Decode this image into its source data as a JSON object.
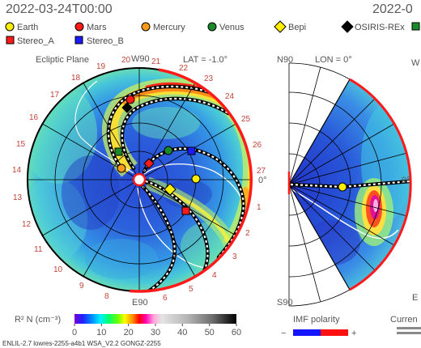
{
  "header": {
    "timestamp": "2022-03-24T00:00",
    "timestamp_right": "2022-0"
  },
  "legend": {
    "items": [
      {
        "label": "Earth",
        "shape": "circle",
        "color": "#ffee00"
      },
      {
        "label": "Mars",
        "shape": "circle",
        "color": "#ff1a1a"
      },
      {
        "label": "Mercury",
        "shape": "circle",
        "color": "#ff9a1a"
      },
      {
        "label": "Venus",
        "shape": "circle",
        "color": "#1a8a2a"
      },
      {
        "label": "Bepi",
        "shape": "diamond",
        "color": "#ffee00"
      },
      {
        "label": "OSIRIS-REx",
        "shape": "diamond",
        "color": "#000000"
      },
      {
        "label": "",
        "shape": "square",
        "color": "#1a8a2a"
      },
      {
        "label": "Stereo_A",
        "shape": "square",
        "color": "#ff1a1a"
      },
      {
        "label": "Stereo_B",
        "shape": "square",
        "color": "#1a1aff"
      }
    ]
  },
  "ecliptic_panel": {
    "title": "Ecliptic Plane",
    "w_label": "W90",
    "e_label": "E90",
    "lat_label": "LAT = -1.0°",
    "zero_label": "0°",
    "longitude_labels": [
      "17",
      "18",
      "19",
      "20",
      "21",
      "22",
      "23",
      "24",
      "25",
      "26",
      "27",
      "1",
      "2",
      "3",
      "4",
      "5",
      "6",
      "8",
      "9",
      "10",
      "11",
      "12",
      "13",
      "14",
      "15",
      "16"
    ]
  },
  "meridional_panel": {
    "n_label": "N90",
    "s_label": "S90",
    "lon_label": "LON = 0°",
    "w_label": "W",
    "e_label": "E",
    "zero_label": "0°"
  },
  "colorbar": {
    "label": "R² N (cm⁻³)",
    "ticks": [
      "0",
      "10",
      "20",
      "30",
      "40",
      "50",
      "60"
    ]
  },
  "imf": {
    "title": "IMF polarity",
    "minus": "−",
    "plus": "+",
    "negative_color": "#1414ff",
    "positive_color": "#ff1010"
  },
  "current": {
    "title": "Curren"
  },
  "footer": {
    "text": "ENLIL-2.7 lowres-2255-a4b1 WSA_V2.2 GONGZ-2255"
  }
}
